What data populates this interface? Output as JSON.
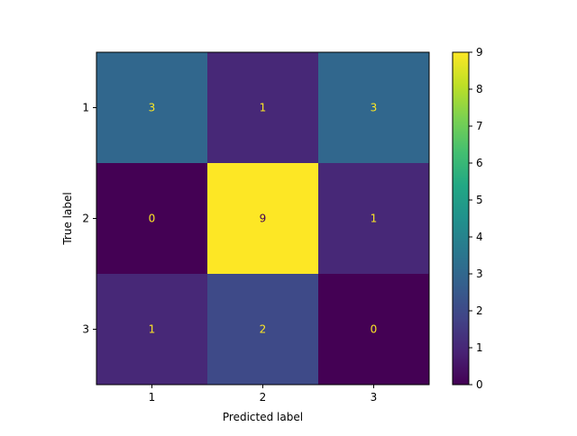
{
  "chart_data": {
    "type": "heatmap",
    "title": "",
    "xlabel": "Predicted label",
    "ylabel": "True label",
    "x_categories": [
      "1",
      "2",
      "3"
    ],
    "y_categories": [
      "1",
      "2",
      "3"
    ],
    "values": [
      [
        3,
        1,
        3
      ],
      [
        0,
        9,
        1
      ],
      [
        1,
        2,
        0
      ]
    ],
    "colormap": "viridis",
    "value_range": [
      0,
      9
    ],
    "colorbar_ticks": [
      "0",
      "1",
      "2",
      "3",
      "4",
      "5",
      "6",
      "7",
      "8",
      "9"
    ],
    "grid": false,
    "colorbar_placement": "right",
    "label_color_light": "#fde725",
    "label_color_dark": "#440154"
  }
}
